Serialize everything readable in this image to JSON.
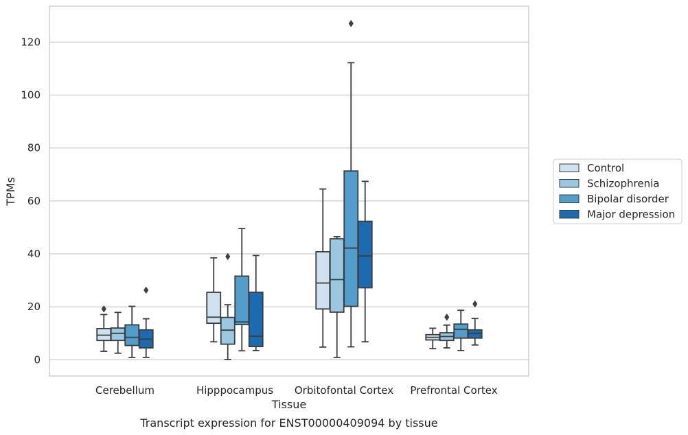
{
  "caption": "Transcript expression for ENST00000409094 by tissue",
  "chart_data": {
    "type": "box",
    "xlabel": "Tissue",
    "ylabel": "TPMs",
    "ylim": [
      -6,
      134
    ],
    "yticks": [
      0,
      20,
      40,
      60,
      80,
      100,
      120
    ],
    "grid": "horizontal",
    "legend_position": "right",
    "categories": [
      "Cerebellum",
      "Hipppocampus",
      "Orbitofontal Cortex",
      "Prefrontal Cortex"
    ],
    "series": [
      {
        "name": "Control",
        "color": "#cfe0f1",
        "boxes": [
          {
            "whislo": 3.2,
            "q1": 7.3,
            "med": 9.3,
            "q3": 11.8,
            "whishi": 17.1,
            "fliers": [
              19.2
            ]
          },
          {
            "whislo": 6.8,
            "q1": 13.8,
            "med": 16.1,
            "q3": 25.5,
            "whishi": 38.5,
            "fliers": []
          },
          {
            "whislo": 4.8,
            "q1": 19.2,
            "med": 29.0,
            "q3": 40.8,
            "whishi": 64.5,
            "fliers": []
          },
          {
            "whislo": 4.2,
            "q1": 7.5,
            "med": 8.5,
            "q3": 9.5,
            "whishi": 11.9,
            "fliers": []
          }
        ]
      },
      {
        "name": "Schizophrenia",
        "color": "#9ac8e0",
        "boxes": [
          {
            "whislo": 2.5,
            "q1": 7.3,
            "med": 10.0,
            "q3": 12.0,
            "whishi": 17.9,
            "fliers": []
          },
          {
            "whislo": 0.1,
            "q1": 5.9,
            "med": 11.2,
            "q3": 16.0,
            "whishi": 20.8,
            "fliers": [
              39.0
            ]
          },
          {
            "whislo": 0.9,
            "q1": 18.0,
            "med": 30.3,
            "q3": 45.7,
            "whishi": 46.5,
            "fliers": []
          },
          {
            "whislo": 4.5,
            "q1": 7.3,
            "med": 8.8,
            "q3": 10.2,
            "whishi": 13.1,
            "fliers": [
              16.1
            ]
          }
        ]
      },
      {
        "name": "Bipolar disorder",
        "color": "#529dcc",
        "boxes": [
          {
            "whislo": 0.9,
            "q1": 5.4,
            "med": 8.5,
            "q3": 13.2,
            "whishi": 20.2,
            "fliers": []
          },
          {
            "whislo": 3.4,
            "q1": 13.3,
            "med": 14.3,
            "q3": 31.6,
            "whishi": 49.6,
            "fliers": []
          },
          {
            "whislo": 4.9,
            "q1": 20.2,
            "med": 42.2,
            "q3": 71.3,
            "whishi": 112.2,
            "fliers": [
              127.0
            ]
          },
          {
            "whislo": 3.5,
            "q1": 8.2,
            "med": 11.5,
            "q3": 13.5,
            "whishi": 18.7,
            "fliers": []
          }
        ]
      },
      {
        "name": "Major depression",
        "color": "#1c6aaf",
        "boxes": [
          {
            "whislo": 0.9,
            "q1": 4.5,
            "med": 7.8,
            "q3": 11.3,
            "whishi": 15.5,
            "fliers": [
              26.3
            ]
          },
          {
            "whislo": 3.5,
            "q1": 5.0,
            "med": 8.9,
            "q3": 25.5,
            "whishi": 39.4,
            "fliers": []
          },
          {
            "whislo": 6.8,
            "q1": 27.2,
            "med": 39.2,
            "q3": 52.3,
            "whishi": 67.4,
            "fliers": []
          },
          {
            "whislo": 5.6,
            "q1": 8.2,
            "med": 10.0,
            "q3": 11.3,
            "whishi": 15.6,
            "fliers": [
              21.1
            ]
          }
        ]
      }
    ]
  }
}
